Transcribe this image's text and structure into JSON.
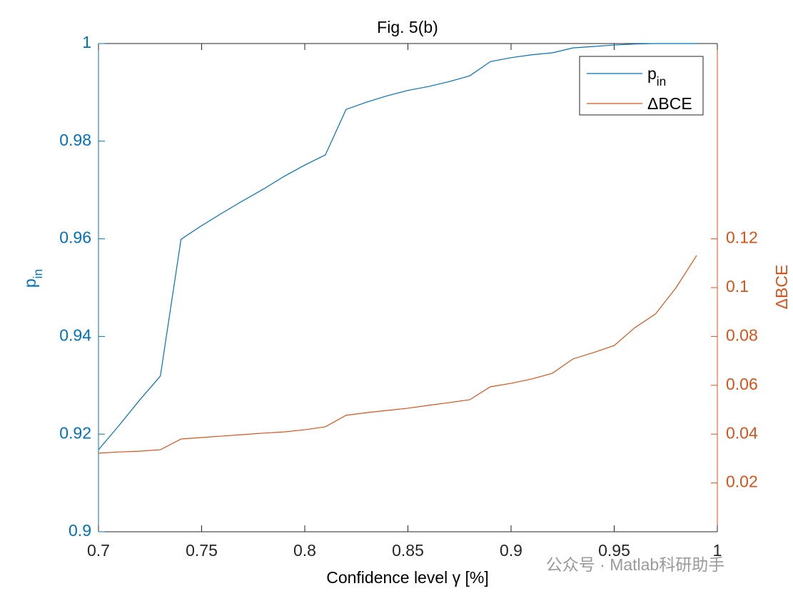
{
  "chart_data": {
    "type": "line",
    "title": "Fig. 5(b)",
    "xlabel": "Confidence level γ [%]",
    "ylabel": "p_in",
    "y2label": "ΔBCE",
    "x": [
      0.7,
      0.71,
      0.72,
      0.73,
      0.74,
      0.75,
      0.76,
      0.77,
      0.78,
      0.79,
      0.8,
      0.81,
      0.82,
      0.83,
      0.84,
      0.85,
      0.86,
      0.87,
      0.88,
      0.89,
      0.9,
      0.91,
      0.92,
      0.93,
      0.94,
      0.95,
      0.96,
      0.97,
      0.98,
      0.99
    ],
    "series": [
      {
        "name": "p_in",
        "color": "#0072bd",
        "axis": "y",
        "values": [
          0.9168,
          0.9218,
          0.927,
          0.9319,
          0.9599,
          0.9627,
          0.9653,
          0.9678,
          0.9702,
          0.9728,
          0.9751,
          0.9772,
          0.9865,
          0.988,
          0.9893,
          0.9904,
          0.9912,
          0.9922,
          0.9934,
          0.9963,
          0.9971,
          0.9977,
          0.9981,
          0.9991,
          0.9994,
          0.9997,
          0.9999,
          1.0,
          1.0,
          1.0
        ]
      },
      {
        "name": "ΔBCE",
        "color": "#d95319",
        "axis": "y2",
        "values": [
          0.0322,
          0.0327,
          0.033,
          0.0336,
          0.038,
          0.0386,
          0.0392,
          0.0398,
          0.0404,
          0.0409,
          0.0418,
          0.043,
          0.0477,
          0.0488,
          0.0497,
          0.0506,
          0.0518,
          0.0529,
          0.0541,
          0.0594,
          0.0608,
          0.0626,
          0.0649,
          0.0708,
          0.0734,
          0.0763,
          0.0836,
          0.0892,
          0.1,
          0.1132
        ]
      }
    ],
    "xlim": [
      0.7,
      1
    ],
    "xticks": [
      0.7,
      0.75,
      0.8,
      0.85,
      0.9,
      0.95,
      1
    ],
    "ylim": [
      0.9,
      1
    ],
    "yticks": [
      0.9,
      0.92,
      0.94,
      0.96,
      0.98,
      1
    ],
    "y2lim": [
      0,
      0.2
    ],
    "y2ticks": [
      0.02,
      0.04,
      0.06,
      0.08,
      0.1,
      0.12
    ],
    "legend": "top-right",
    "annotation": "公众号 · Matlab科研助手"
  }
}
